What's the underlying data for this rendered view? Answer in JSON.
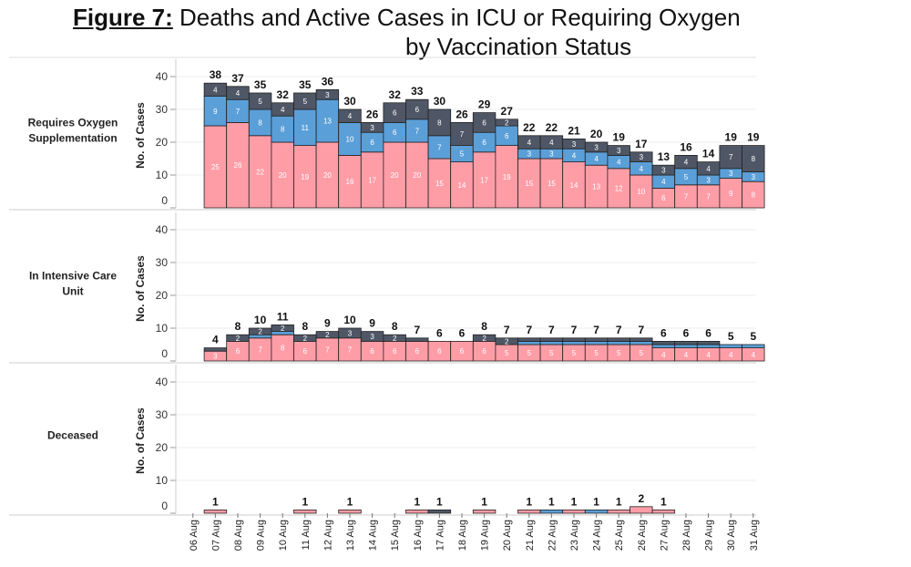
{
  "title": {
    "figure_label": "Figure 7:",
    "line1": " Deaths and Active Cases in ICU or Requiring Oxygen",
    "line2": "by Vaccination Status"
  },
  "chart_data": {
    "type": "bar",
    "stacked": true,
    "categories": [
      "06 Aug",
      "07 Aug",
      "08 Aug",
      "09 Aug",
      "10 Aug",
      "11 Aug",
      "12 Aug",
      "13 Aug",
      "14 Aug",
      "15 Aug",
      "16 Aug",
      "17 Aug",
      "18 Aug",
      "19 Aug",
      "20 Aug",
      "21 Aug",
      "22 Aug",
      "23 Aug",
      "24 Aug",
      "25 Aug",
      "26 Aug",
      "27 Aug",
      "28 Aug",
      "29 Aug",
      "30 Aug",
      "31 Aug"
    ],
    "ylabel": "No. of Cases",
    "ylim": [
      0,
      40
    ],
    "yticks": [
      0,
      10,
      20,
      30,
      40
    ],
    "grid": true,
    "colors": {
      "pink": "#ff9da7",
      "blue": "#5b9fd8",
      "dark": "#4f5766"
    },
    "panels": [
      {
        "label": "Requires Oxygen Supplementation",
        "totals": [
          null,
          38,
          37,
          35,
          32,
          35,
          36,
          30,
          26,
          32,
          33,
          30,
          26,
          29,
          27,
          22,
          22,
          21,
          20,
          19,
          17,
          13,
          16,
          14,
          19,
          19
        ],
        "series": [
          {
            "color": "pink",
            "values": [
              0,
              25,
              26,
              22,
              20,
              19,
              20,
              16,
              17,
              20,
              20,
              15,
              14,
              17,
              19,
              15,
              15,
              14,
              13,
              12,
              10,
              6,
              7,
              7,
              9,
              8
            ]
          },
          {
            "color": "blue",
            "values": [
              0,
              9,
              7,
              8,
              8,
              11,
              13,
              10,
              6,
              6,
              7,
              7,
              5,
              6,
              6,
              3,
              3,
              4,
              4,
              4,
              4,
              4,
              5,
              3,
              3,
              3
            ]
          },
          {
            "color": "dark",
            "values": [
              0,
              4,
              4,
              5,
              4,
              5,
              3,
              4,
              3,
              6,
              6,
              8,
              7,
              6,
              2,
              4,
              4,
              3,
              3,
              3,
              3,
              3,
              4,
              4,
              7,
              8
            ]
          }
        ]
      },
      {
        "label": "In Intensive Care Unit",
        "totals": [
          null,
          4,
          8,
          10,
          11,
          8,
          9,
          10,
          9,
          8,
          7,
          6,
          6,
          8,
          7,
          7,
          7,
          7,
          7,
          7,
          7,
          6,
          6,
          6,
          5,
          5
        ],
        "series": [
          {
            "color": "pink",
            "values": [
              0,
              3,
              6,
              7,
              8,
              6,
              7,
              7,
              6,
              6,
              6,
              6,
              6,
              6,
              5,
              5,
              5,
              5,
              5,
              5,
              5,
              4,
              4,
              4,
              4,
              4
            ]
          },
          {
            "color": "blue",
            "values": [
              0,
              0,
              0,
              1,
              1,
              0,
              0,
              0,
              0,
              0,
              0,
              0,
              0,
              0,
              0,
              1,
              1,
              1,
              1,
              1,
              1,
              1,
              1,
              1,
              1,
              1
            ]
          },
          {
            "color": "dark",
            "values": [
              0,
              1,
              2,
              2,
              2,
              2,
              2,
              3,
              3,
              2,
              1,
              0,
              0,
              2,
              2,
              1,
              1,
              1,
              1,
              1,
              1,
              1,
              1,
              1,
              0,
              0
            ]
          }
        ]
      },
      {
        "label": "Deceased",
        "totals": [
          null,
          1,
          null,
          null,
          null,
          1,
          null,
          1,
          null,
          null,
          1,
          1,
          null,
          1,
          null,
          1,
          1,
          1,
          1,
          1,
          2,
          1,
          null,
          null,
          null,
          null
        ],
        "series": [
          {
            "color": "pink",
            "values": [
              0,
              1,
              0,
              0,
              0,
              1,
              0,
              1,
              0,
              0,
              1,
              0,
              0,
              1,
              0,
              1,
              0,
              1,
              0,
              1,
              2,
              1,
              0,
              0,
              0,
              0
            ]
          },
          {
            "color": "blue",
            "values": [
              0,
              0,
              0,
              0,
              0,
              0,
              0,
              0,
              0,
              0,
              0,
              0,
              0,
              0,
              0,
              0,
              1,
              0,
              1,
              0,
              0,
              0,
              0,
              0,
              0,
              0
            ]
          },
          {
            "color": "dark",
            "values": [
              0,
              0,
              0,
              0,
              0,
              0,
              0,
              0,
              0,
              0,
              0,
              1,
              0,
              0,
              0,
              0,
              0,
              0,
              0,
              0,
              0,
              0,
              0,
              0,
              0,
              0
            ]
          }
        ]
      }
    ]
  }
}
